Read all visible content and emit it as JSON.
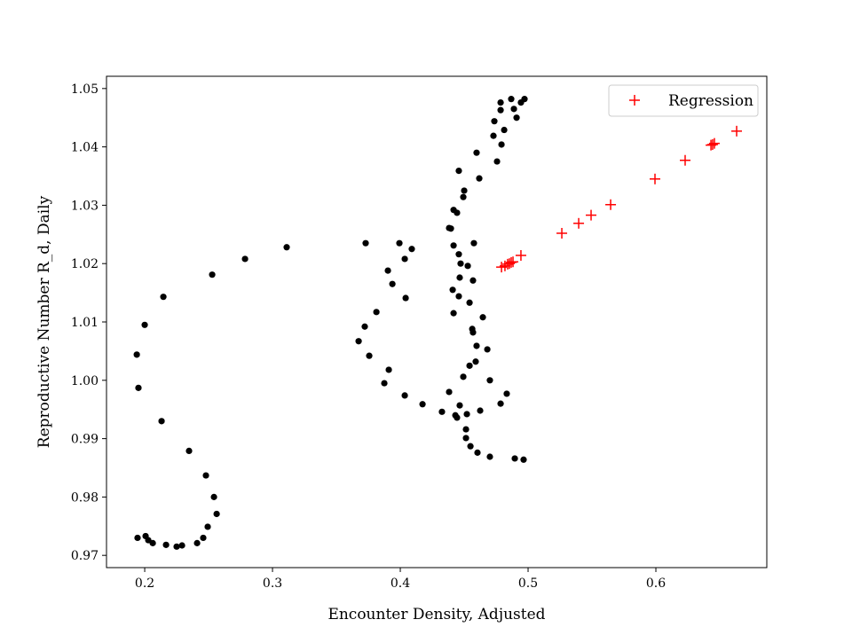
{
  "chart_data": {
    "type": "scatter",
    "title": "",
    "xlabel": "Encounter Density, Adjusted",
    "ylabel": "Reproductive Number R_d, Daily",
    "xlim": [
      0.1701,
      0.6868
    ],
    "ylim": [
      0.9679,
      1.0521
    ],
    "xticks": [
      0.2,
      0.3,
      0.4,
      0.5,
      0.6
    ],
    "xtick_labels": [
      "0.2",
      "0.3",
      "0.4",
      "0.5",
      "0.6"
    ],
    "yticks": [
      0.97,
      0.98,
      0.99,
      1.0,
      1.01,
      1.02,
      1.03,
      1.04,
      1.05
    ],
    "ytick_labels": [
      "0.97",
      "0.98",
      "0.99",
      "1.00",
      "1.01",
      "1.02",
      "1.03",
      "1.04",
      "1.05"
    ],
    "grid": false,
    "legend": {
      "placement": "top-right",
      "entries": [
        "Regression"
      ]
    },
    "series": [
      {
        "name": "",
        "marker": "dot",
        "color": "#000000",
        "points": [
          [
            0.2785,
            1.0208
          ],
          [
            0.3111,
            1.0228
          ],
          [
            0.2528,
            1.0181
          ],
          [
            0.2146,
            1.0143
          ],
          [
            0.2,
            1.0095
          ],
          [
            0.1938,
            1.0044
          ],
          [
            0.1951,
            0.9987
          ],
          [
            0.2132,
            0.993
          ],
          [
            0.2347,
            0.9879
          ],
          [
            0.2479,
            0.9837
          ],
          [
            0.2542,
            0.98
          ],
          [
            0.2563,
            0.9771
          ],
          [
            0.2493,
            0.9749
          ],
          [
            0.2458,
            0.973
          ],
          [
            0.241,
            0.9721
          ],
          [
            0.2292,
            0.9717
          ],
          [
            0.225,
            0.9715
          ],
          [
            0.2167,
            0.9718
          ],
          [
            0.2063,
            0.9721
          ],
          [
            0.2028,
            0.9726
          ],
          [
            0.2007,
            0.9733
          ],
          [
            0.1944,
            0.973
          ],
          [
            0.3729,
            1.0235
          ],
          [
            0.3813,
            1.0117
          ],
          [
            0.3722,
            1.0092
          ],
          [
            0.3674,
            1.0067
          ],
          [
            0.3757,
            1.0042
          ],
          [
            0.3875,
            0.9995
          ],
          [
            0.391,
            1.0018
          ],
          [
            0.3993,
            1.0235
          ],
          [
            0.3903,
            1.0188
          ],
          [
            0.3938,
            1.0165
          ],
          [
            0.4042,
            1.0141
          ],
          [
            0.4035,
            1.0208
          ],
          [
            0.409,
            1.0225
          ],
          [
            0.4035,
            0.9974
          ],
          [
            0.4174,
            0.9959
          ],
          [
            0.4326,
            0.9946
          ],
          [
            0.4382,
            0.998
          ],
          [
            0.4431,
            0.994
          ],
          [
            0.4444,
            0.9936
          ],
          [
            0.4465,
            0.9957
          ],
          [
            0.4521,
            0.9942
          ],
          [
            0.4514,
            0.9916
          ],
          [
            0.4514,
            0.9901
          ],
          [
            0.4549,
            0.9887
          ],
          [
            0.4604,
            0.9876
          ],
          [
            0.4701,
            0.9869
          ],
          [
            0.4896,
            0.9866
          ],
          [
            0.4965,
            0.9864
          ],
          [
            0.4625,
            0.9948
          ],
          [
            0.4785,
            0.996
          ],
          [
            0.4833,
            0.9977
          ],
          [
            0.4493,
            1.0006
          ],
          [
            0.4701,
            1.0
          ],
          [
            0.4542,
            1.0025
          ],
          [
            0.459,
            1.0032
          ],
          [
            0.4681,
            1.0053
          ],
          [
            0.4597,
            1.0059
          ],
          [
            0.4569,
            1.0082
          ],
          [
            0.4563,
            1.0088
          ],
          [
            0.4646,
            1.0108
          ],
          [
            0.4417,
            1.0115
          ],
          [
            0.4542,
            1.0133
          ],
          [
            0.4458,
            1.0144
          ],
          [
            0.441,
            1.0155
          ],
          [
            0.4569,
            1.0171
          ],
          [
            0.4465,
            1.0176
          ],
          [
            0.4528,
            1.0196
          ],
          [
            0.4472,
            1.02
          ],
          [
            0.4458,
            1.0216
          ],
          [
            0.4417,
            1.0231
          ],
          [
            0.4576,
            1.0235
          ],
          [
            0.4396,
            1.026
          ],
          [
            0.4382,
            1.0261
          ],
          [
            0.4444,
            1.0287
          ],
          [
            0.4417,
            1.0292
          ],
          [
            0.4493,
            1.0314
          ],
          [
            0.45,
            1.0325
          ],
          [
            0.4618,
            1.0346
          ],
          [
            0.4458,
            1.0359
          ],
          [
            0.4757,
            1.0375
          ],
          [
            0.4597,
            1.039
          ],
          [
            0.4792,
            1.0404
          ],
          [
            0.4729,
            1.0419
          ],
          [
            0.4813,
            1.0429
          ],
          [
            0.4736,
            1.0444
          ],
          [
            0.491,
            1.045
          ],
          [
            0.4785,
            1.0463
          ],
          [
            0.4889,
            1.0465
          ],
          [
            0.4785,
            1.0476
          ],
          [
            0.4868,
            1.0482
          ],
          [
            0.4944,
            1.0476
          ],
          [
            0.4972,
            1.0482
          ]
        ]
      },
      {
        "name": "Regression",
        "marker": "plus",
        "color": "#ff0000",
        "points": [
          [
            0.4792,
            1.0194
          ],
          [
            0.4819,
            1.0196
          ],
          [
            0.484,
            1.0199
          ],
          [
            0.4854,
            1.02
          ],
          [
            0.4868,
            1.0202
          ],
          [
            0.4882,
            1.0203
          ],
          [
            0.4944,
            1.0214
          ],
          [
            0.5264,
            1.0252
          ],
          [
            0.5396,
            1.0269
          ],
          [
            0.5493,
            1.0283
          ],
          [
            0.5646,
            1.0301
          ],
          [
            0.5993,
            1.0345
          ],
          [
            0.6229,
            1.0377
          ],
          [
            0.6431,
            1.0403
          ],
          [
            0.6444,
            1.0404
          ],
          [
            0.6458,
            1.0406
          ],
          [
            0.6632,
            1.0427
          ]
        ]
      }
    ]
  }
}
